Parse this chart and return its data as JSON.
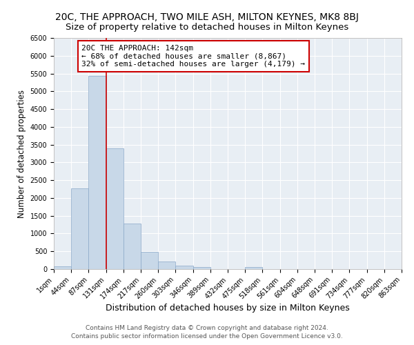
{
  "title": "20C, THE APPROACH, TWO MILE ASH, MILTON KEYNES, MK8 8BJ",
  "subtitle": "Size of property relative to detached houses in Milton Keynes",
  "xlabel": "Distribution of detached houses by size in Milton Keynes",
  "ylabel": "Number of detached properties",
  "bar_color": "#c8d8e8",
  "bar_edge_color": "#8aa8c8",
  "background_color": "#e8eef4",
  "plot_bg_color": "#e8eef4",
  "grid_color": "#ffffff",
  "fig_bg_color": "#ffffff",
  "bin_labels": [
    "1sqm",
    "44sqm",
    "87sqm",
    "131sqm",
    "174sqm",
    "217sqm",
    "260sqm",
    "303sqm",
    "346sqm",
    "389sqm",
    "432sqm",
    "475sqm",
    "518sqm",
    "561sqm",
    "604sqm",
    "648sqm",
    "691sqm",
    "734sqm",
    "777sqm",
    "820sqm",
    "863sqm"
  ],
  "bar_values": [
    75,
    2270,
    5430,
    3390,
    1290,
    480,
    205,
    90,
    50,
    0,
    0,
    50,
    0,
    0,
    0,
    0,
    0,
    0,
    0,
    0
  ],
  "ylim": [
    0,
    6500
  ],
  "yticks": [
    0,
    500,
    1000,
    1500,
    2000,
    2500,
    3000,
    3500,
    4000,
    4500,
    5000,
    5500,
    6000,
    6500
  ],
  "vline_x": 3,
  "vline_color": "#cc0000",
  "annotation_title": "20C THE APPROACH: 142sqm",
  "annotation_line1": "← 68% of detached houses are smaller (8,867)",
  "annotation_line2": "32% of semi-detached houses are larger (4,179) →",
  "annotation_box_color": "#ffffff",
  "annotation_box_edge": "#cc0000",
  "footer_line1": "Contains HM Land Registry data © Crown copyright and database right 2024.",
  "footer_line2": "Contains public sector information licensed under the Open Government Licence v3.0.",
  "title_fontsize": 10,
  "subtitle_fontsize": 9.5,
  "xlabel_fontsize": 9,
  "ylabel_fontsize": 8.5,
  "tick_fontsize": 7,
  "annotation_fontsize": 8,
  "footer_fontsize": 6.5
}
